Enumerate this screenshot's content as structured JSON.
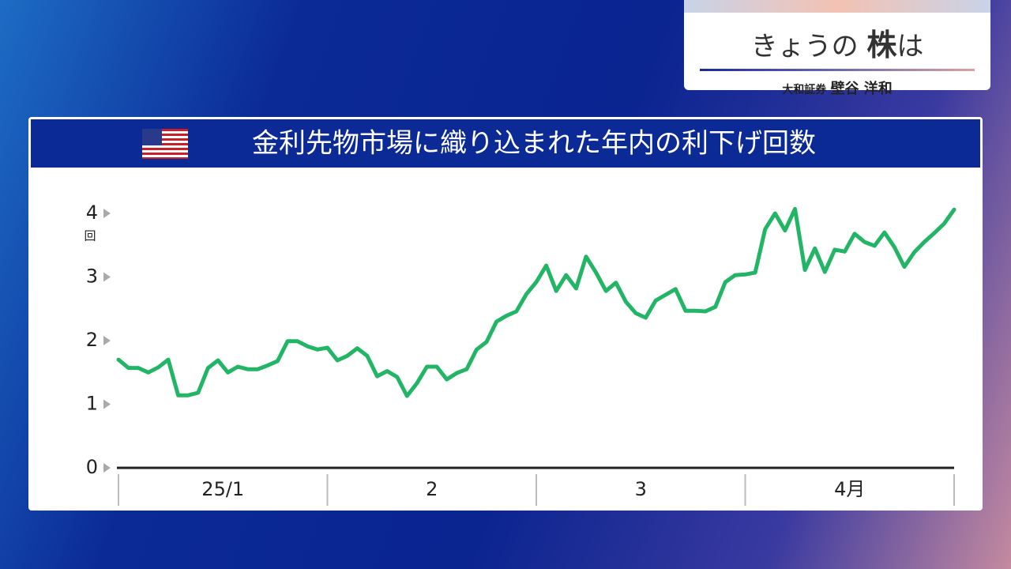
{
  "header": {
    "title_pre": "きょうの",
    "title_key": "株",
    "title_post": "は",
    "company": "大和証券",
    "person": "壁谷 洋和"
  },
  "chart_data": {
    "type": "line",
    "title": "金利先物市場に織り込まれた年内の利下げ回数",
    "y_unit": "回",
    "month_labels": [
      "25/1",
      "2",
      "3",
      "4月"
    ],
    "color": "#22b565",
    "ylim": [
      0,
      4
    ],
    "yticks": [
      0,
      1,
      2,
      3,
      4
    ],
    "values": [
      1.7,
      1.57,
      1.57,
      1.5,
      1.58,
      1.7,
      1.14,
      1.14,
      1.18,
      1.57,
      1.69,
      1.5,
      1.59,
      1.55,
      1.55,
      1.61,
      1.68,
      1.99,
      1.99,
      1.91,
      1.86,
      1.89,
      1.69,
      1.76,
      1.88,
      1.76,
      1.44,
      1.52,
      1.43,
      1.13,
      1.33,
      1.59,
      1.59,
      1.39,
      1.49,
      1.55,
      1.86,
      1.98,
      2.3,
      2.39,
      2.46,
      2.73,
      2.92,
      3.18,
      2.78,
      3.03,
      2.82,
      3.32,
      3.07,
      2.78,
      2.91,
      2.61,
      2.43,
      2.36,
      2.63,
      2.72,
      2.81,
      2.47,
      2.47,
      2.46,
      2.53,
      2.92,
      3.03,
      3.04,
      3.07,
      3.75,
      4.0,
      3.73,
      4.07,
      3.11,
      3.45,
      3.08,
      3.43,
      3.4,
      3.68,
      3.55,
      3.49,
      3.7,
      3.47,
      3.16,
      3.39,
      3.55,
      3.69,
      3.84,
      4.06
    ]
  }
}
